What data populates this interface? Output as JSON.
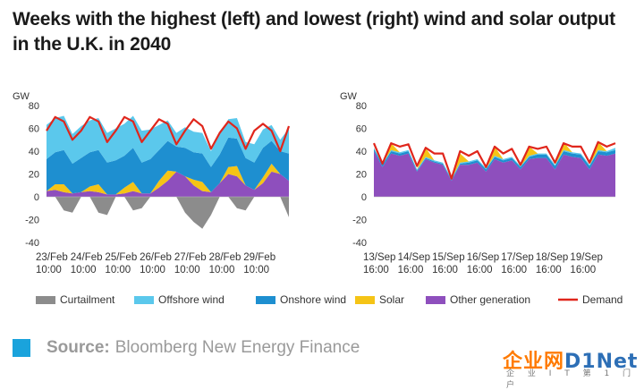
{
  "title": "Weeks with the highest (left) and lowest (right) wind and solar output in the U.K. in 2040",
  "source": {
    "label": "Source:",
    "text": "Bloomberg New Energy Finance"
  },
  "watermark": {
    "main_a": "企业网",
    "main_b": "D1Net",
    "sub": "企 业 I T 第 1 门 户"
  },
  "colors": {
    "curtailment": "#8c8c8c",
    "offshore": "#5bc8ec",
    "onshore": "#1e8fd0",
    "solar": "#f5c416",
    "other": "#8e4fbd",
    "demand": "#e0261c",
    "source_square": "#1aa3dc"
  },
  "legend": [
    {
      "key": "curtailment",
      "label": "Curtailment",
      "type": "box"
    },
    {
      "key": "offshore",
      "label": "Offshore wind",
      "type": "box"
    },
    {
      "key": "onshore",
      "label": "Onshore wind",
      "type": "box"
    },
    {
      "key": "solar",
      "label": "Solar",
      "type": "box"
    },
    {
      "key": "other",
      "label": "Other generation",
      "type": "box"
    },
    {
      "key": "demand",
      "label": "Demand",
      "type": "line"
    }
  ],
  "chart_data": [
    {
      "type": "area",
      "ylabel": "GW",
      "ylim": [
        -40,
        80
      ],
      "yticks": [
        -40,
        -20,
        0,
        20,
        40,
        60,
        80
      ],
      "xtick_labels": [
        [
          "23/Feb",
          "10:00"
        ],
        [
          "24/Feb",
          "10:00"
        ],
        [
          "25/Feb",
          "10:00"
        ],
        [
          "26/Feb",
          "10:00"
        ],
        [
          "27/Feb",
          "10:00"
        ],
        [
          "28/Feb",
          "10:00"
        ],
        [
          "29/Feb",
          "10:00"
        ]
      ],
      "x": [
        0,
        0.25,
        0.5,
        0.75,
        1,
        1.25,
        1.5,
        1.75,
        2,
        2.25,
        2.5,
        2.75,
        3,
        3.25,
        3.5,
        3.75,
        4,
        4.25,
        4.5,
        4.75,
        5,
        5.25,
        5.5,
        5.75,
        6,
        6.25,
        6.5,
        6.75,
        7
      ],
      "series": [
        {
          "key": "other",
          "name": "Other generation",
          "values": [
            5,
            6,
            4,
            3,
            4,
            5,
            4,
            2,
            2,
            3,
            5,
            3,
            3,
            8,
            14,
            22,
            18,
            10,
            5,
            4,
            12,
            20,
            18,
            10,
            6,
            12,
            22,
            20,
            14
          ]
        },
        {
          "key": "solar",
          "name": "Solar",
          "values": [
            0,
            5,
            7,
            0,
            0,
            4,
            7,
            0,
            0,
            5,
            8,
            0,
            0,
            6,
            9,
            0,
            0,
            5,
            8,
            0,
            0,
            6,
            9,
            0,
            0,
            5,
            7,
            0,
            0
          ]
        },
        {
          "key": "onshore",
          "name": "Onshore wind",
          "values": [
            28,
            28,
            30,
            26,
            30,
            30,
            30,
            28,
            30,
            28,
            30,
            27,
            30,
            27,
            26,
            22,
            25,
            24,
            25,
            22,
            25,
            26,
            24,
            24,
            24,
            26,
            20,
            20,
            24
          ]
        },
        {
          "key": "offshore",
          "name": "Offshore wind",
          "values": [
            30,
            30,
            30,
            26,
            28,
            28,
            28,
            26,
            28,
            28,
            28,
            28,
            26,
            22,
            18,
            12,
            18,
            18,
            18,
            14,
            18,
            16,
            18,
            14,
            16,
            16,
            14,
            10,
            22
          ]
        },
        {
          "key": "curtailment",
          "name": "Curtailment",
          "values": [
            0,
            0,
            -12,
            -14,
            0,
            0,
            -14,
            -16,
            0,
            0,
            -12,
            -10,
            0,
            0,
            0,
            0,
            -14,
            -22,
            -28,
            -16,
            0,
            0,
            -10,
            -12,
            0,
            0,
            0,
            0,
            -18
          ]
        }
      ],
      "demand": [
        58,
        70,
        66,
        50,
        58,
        70,
        66,
        48,
        58,
        70,
        66,
        48,
        58,
        68,
        64,
        46,
        58,
        68,
        62,
        42,
        56,
        66,
        60,
        42,
        58,
        64,
        58,
        40,
        62
      ]
    },
    {
      "type": "area",
      "ylabel": "GW",
      "ylim": [
        -40,
        80
      ],
      "yticks": [
        -40,
        -20,
        0,
        20,
        40,
        60,
        80
      ],
      "xtick_labels": [
        [
          "13/Sep",
          "16:00"
        ],
        [
          "14/Sep",
          "16:00"
        ],
        [
          "15/Sep",
          "16:00"
        ],
        [
          "16/Sep",
          "16:00"
        ],
        [
          "17/Sep",
          "16:00"
        ],
        [
          "18/Sep",
          "16:00"
        ],
        [
          "19/Sep",
          "16:00"
        ]
      ],
      "x": [
        0,
        0.25,
        0.5,
        0.75,
        1,
        1.25,
        1.5,
        1.75,
        2,
        2.25,
        2.5,
        2.75,
        3,
        3.25,
        3.5,
        3.75,
        4,
        4.25,
        4.5,
        4.75,
        5,
        5.25,
        5.5,
        5.75,
        6,
        6.25,
        6.5,
        6.75,
        7
      ],
      "series": [
        {
          "key": "other",
          "name": "Other generation",
          "values": [
            40,
            26,
            38,
            36,
            38,
            22,
            33,
            30,
            28,
            14,
            28,
            28,
            30,
            22,
            33,
            30,
            32,
            24,
            33,
            34,
            34,
            24,
            37,
            35,
            34,
            24,
            37,
            36,
            38
          ]
        },
        {
          "key": "onshore",
          "name": "Onshore wind",
          "values": [
            2,
            2,
            2,
            2,
            2,
            1,
            1,
            1,
            1,
            1,
            1,
            2,
            2,
            2,
            2,
            2,
            2,
            2,
            2,
            3,
            3,
            3,
            3,
            3,
            3,
            3,
            3,
            3,
            3
          ]
        },
        {
          "key": "offshore",
          "name": "Offshore wind",
          "values": [
            1,
            1,
            1,
            1,
            1,
            1,
            1,
            1,
            1,
            1,
            1,
            1,
            1,
            1,
            1,
            1,
            1,
            1,
            1,
            1,
            1,
            1,
            1,
            1,
            1,
            1,
            1,
            1,
            2
          ]
        },
        {
          "key": "solar",
          "name": "Solar",
          "values": [
            0,
            0,
            6,
            0,
            0,
            0,
            8,
            0,
            0,
            0,
            8,
            0,
            0,
            0,
            8,
            0,
            0,
            0,
            8,
            0,
            0,
            0,
            7,
            0,
            0,
            0,
            7,
            0,
            0
          ]
        }
      ],
      "demand": [
        47,
        29,
        47,
        44,
        46,
        27,
        43,
        38,
        38,
        16,
        40,
        36,
        40,
        26,
        44,
        38,
        42,
        28,
        44,
        42,
        44,
        30,
        47,
        44,
        44,
        30,
        48,
        44,
        47
      ]
    }
  ]
}
